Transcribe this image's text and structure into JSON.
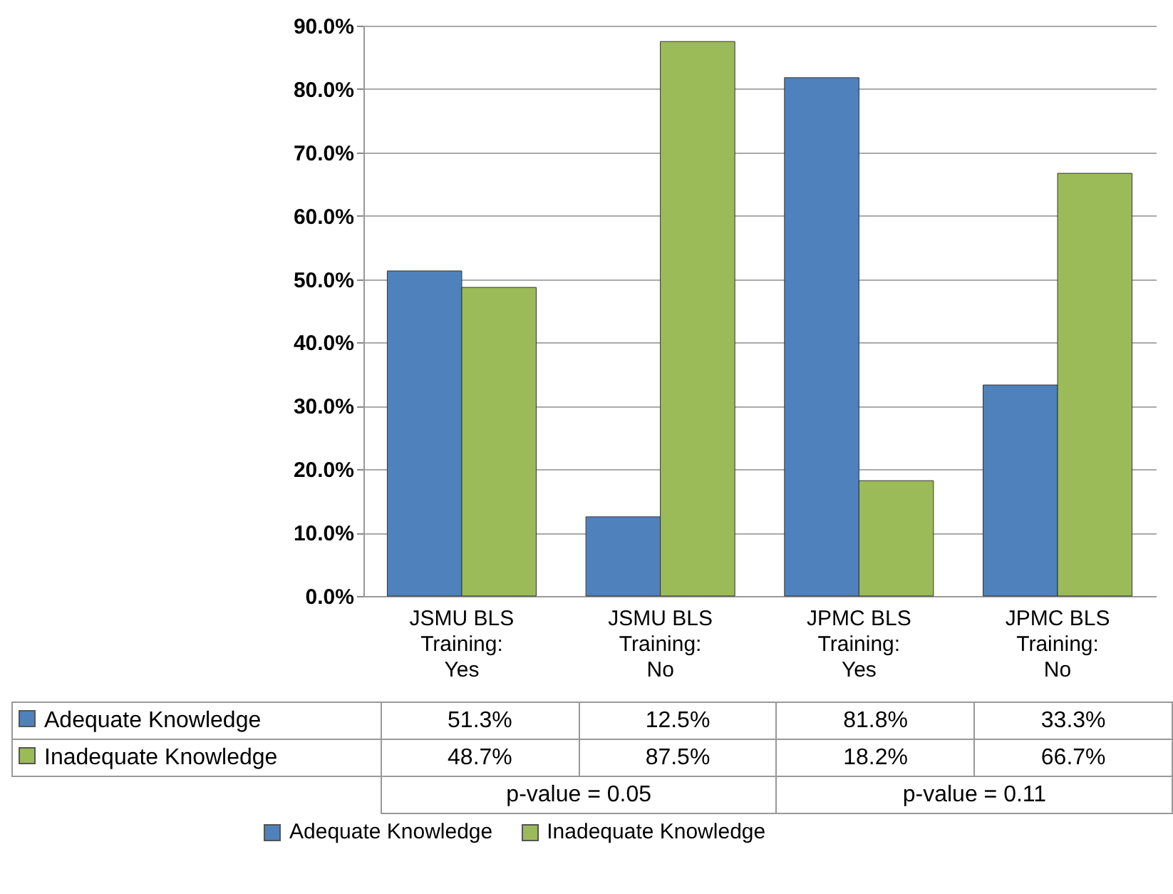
{
  "chart_data": {
    "type": "bar",
    "categories": [
      "JSMU BLS Training: Yes",
      "JSMU BLS Training: No",
      "JPMC BLS Training: Yes",
      "JPMC BLS Training: No"
    ],
    "series": [
      {
        "name": "Adequate Knowledge",
        "color": "#4f81bd",
        "values": [
          51.3,
          12.5,
          81.8,
          33.3
        ],
        "value_labels": [
          "51.3%",
          "12.5%",
          "81.8%",
          "33.3%"
        ]
      },
      {
        "name": "Inadequate Knowledge",
        "color": "#9bbb59",
        "values": [
          48.7,
          87.5,
          18.2,
          66.7
        ],
        "value_labels": [
          "48.7%",
          "87.5%",
          "18.2%",
          "66.7%"
        ]
      }
    ],
    "ylim": [
      0,
      90
    ],
    "yticks": [
      {
        "value": 0,
        "label": "0.0%"
      },
      {
        "value": 10,
        "label": "10.0%"
      },
      {
        "value": 20,
        "label": "20.0%"
      },
      {
        "value": 30,
        "label": "30.0%"
      },
      {
        "value": 40,
        "label": "40.0%"
      },
      {
        "value": 50,
        "label": "50.0%"
      },
      {
        "value": 60,
        "label": "60.0%"
      },
      {
        "value": 70,
        "label": "70.0%"
      },
      {
        "value": 80,
        "label": "80.0%"
      },
      {
        "value": 90,
        "label": "90.0%"
      }
    ],
    "grid": "y",
    "legend": "bottom",
    "annotations": [
      "p-value = 0.05",
      "p-value = 0.11"
    ]
  }
}
